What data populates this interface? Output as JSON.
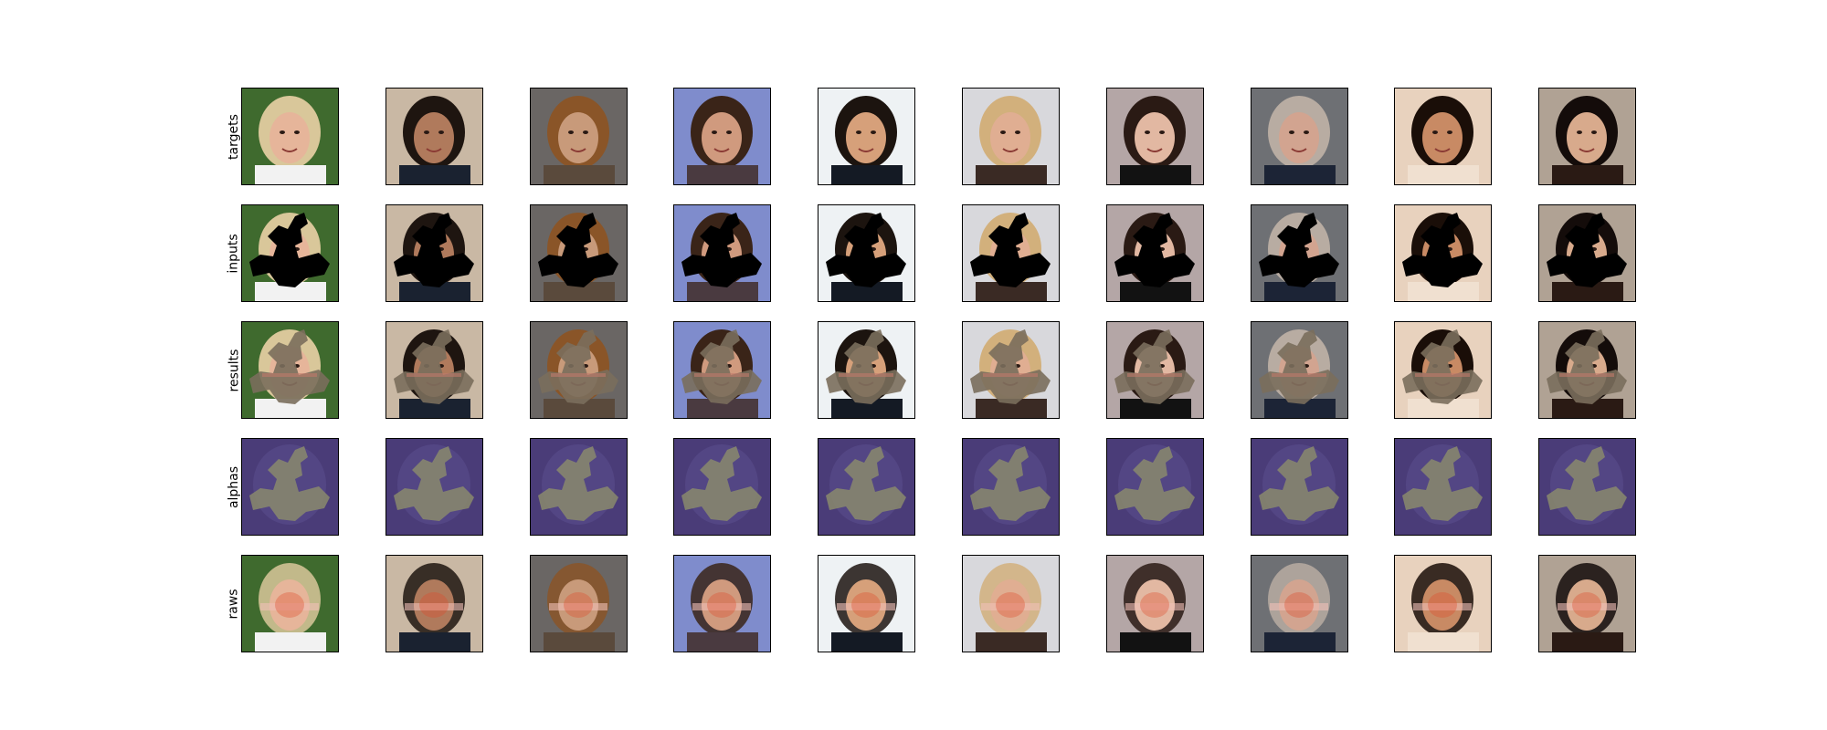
{
  "figure": {
    "rows": [
      {
        "label": "targets",
        "kind": "target"
      },
      {
        "label": "inputs",
        "kind": "input"
      },
      {
        "label": "results",
        "kind": "result"
      },
      {
        "label": "alphas",
        "kind": "alpha"
      },
      {
        "label": "raws",
        "kind": "raw"
      }
    ],
    "columns": [
      {
        "bg": "#3f6a2e",
        "hair": "#d9c79a",
        "skin": "#e6b59a",
        "cloth": "#f2f2f2"
      },
      {
        "bg": "#c9b8a4",
        "hair": "#1e1510",
        "skin": "#b07a5c",
        "cloth": "#1a2230"
      },
      {
        "bg": "#6a6664",
        "hair": "#8a5528",
        "skin": "#c89a7a",
        "cloth": "#5a4a3c"
      },
      {
        "bg": "#7f8ccc",
        "hair": "#3a2418",
        "skin": "#d09a7e",
        "cloth": "#4a3a40"
      },
      {
        "bg": "#eef2f4",
        "hair": "#1c140f",
        "skin": "#d6a07a",
        "cloth": "#141a24"
      },
      {
        "bg": "#d8d8dc",
        "hair": "#d2b07c",
        "skin": "#e0ae92",
        "cloth": "#3a2a24"
      },
      {
        "bg": "#b4a6a6",
        "hair": "#2a1a14",
        "skin": "#e2b8a2",
        "cloth": "#121212"
      },
      {
        "bg": "#6e7074",
        "hair": "#b8aca2",
        "skin": "#d2a490",
        "cloth": "#1c2436"
      },
      {
        "bg": "#e8d2be",
        "hair": "#1a0e08",
        "skin": "#c88a64",
        "cloth": "#f0e0d0"
      },
      {
        "bg": "#b0a294",
        "hair": "#140c0a",
        "skin": "#d8aa8c",
        "cloth": "#2a1a14"
      }
    ],
    "colors": {
      "mask": "#000000",
      "fill": "#7a6e5c",
      "alpha_bg": "#4a3c78",
      "alpha_mask": "#8a8a6c",
      "axes": "#000000"
    }
  }
}
